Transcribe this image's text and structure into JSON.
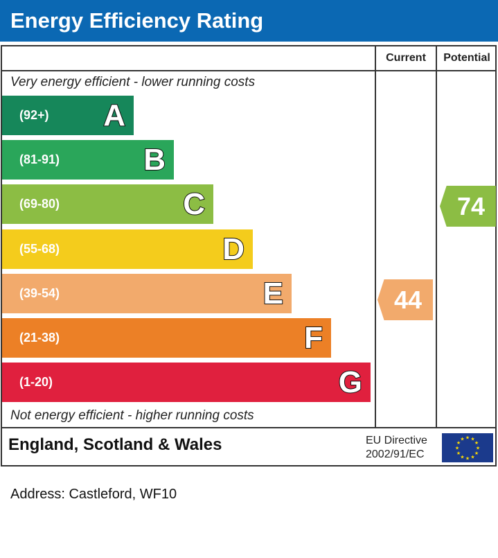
{
  "title": "Energy Efficiency Rating",
  "chart_data": {
    "type": "bar",
    "columns": [
      "Current",
      "Potential"
    ],
    "top_note": "Very energy efficient - lower running costs",
    "bottom_note": "Not energy efficient - higher running costs",
    "bands": [
      {
        "letter": "A",
        "range": "(92+)",
        "color": "#16875a"
      },
      {
        "letter": "B",
        "range": "(81-91)",
        "color": "#2aa65a"
      },
      {
        "letter": "C",
        "range": "(69-80)",
        "color": "#8cbd44"
      },
      {
        "letter": "D",
        "range": "(55-68)",
        "color": "#f4cc1c"
      },
      {
        "letter": "E",
        "range": "(39-54)",
        "color": "#f2aa6c"
      },
      {
        "letter": "F",
        "range": "(21-38)",
        "color": "#ec8026"
      },
      {
        "letter": "G",
        "range": "(1-20)",
        "color": "#e0203e"
      }
    ],
    "current": {
      "value": "44",
      "band": "E",
      "color": "#f2aa6c"
    },
    "potential": {
      "value": "74",
      "band": "C",
      "color": "#8cbd44"
    }
  },
  "footer": {
    "region": "England, Scotland & Wales",
    "directive_line1": "EU Directive",
    "directive_line2": "2002/91/EC"
  },
  "address": "Address: Castleford, WF10"
}
